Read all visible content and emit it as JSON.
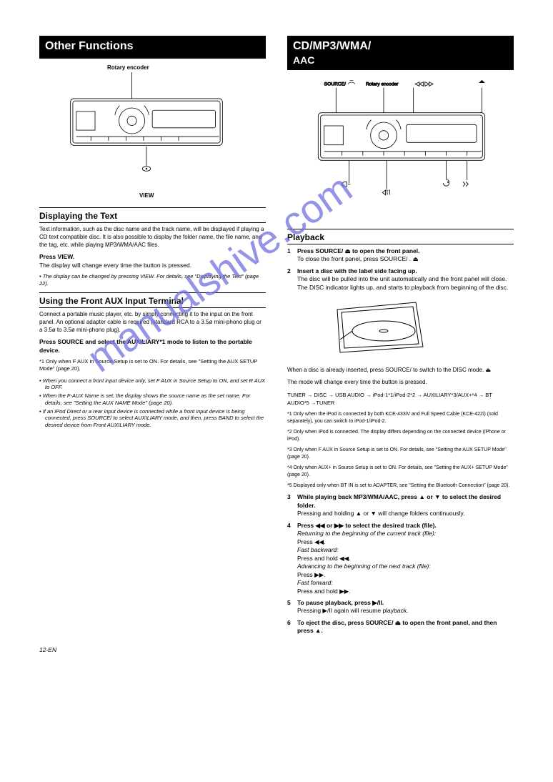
{
  "watermark": "manualshive.com",
  "pgnum": "12-EN",
  "left": {
    "header": {
      "title": "Other Functions"
    },
    "diagram": {
      "labels": {
        "top": "Rotary encoder",
        "bottom": "VIEW"
      },
      "svg": "<svg viewBox='0 0 300 220' width='300' height='180'><line x1='125' y1='5' x2='125' y2='50' stroke='#000' stroke-width='1'/><text x='130' y='10' font-size='8'></text><g fill='none' stroke='#000' stroke-width='1'><rect x='20' y='50' width='260' height='80' rx='6'/><rect x='24' y='54' width='252' height='72' rx='4'/><rect x='30' y='72' width='32' height='32'/><circle cx='125' cy='88' r='22'/><circle cx='125' cy='88' r='8'/><rect x='160' y='70' width='108' height='30' rx='3'/><line x1='30' y1='115' x2='274' y2='115'/><line x1='55' y1='115' x2='55' y2='122'/><line x1='85' y1='115' x2='85' y2='122'/><line x1='115' y1='115' x2='115' y2='122'/><line x1='145' y1='115' x2='145' y2='122'/><line x1='175' y1='115' x2='175' y2='122'/><line x1='205' y1='115' x2='205' y2='122'/><path d='M96 78 A30 30 0 0 1 104 62'/><path d='M154 78 A30 30 0 0 0 146 62'/></g><line x1='150' y1='132' x2='150' y2='165' stroke='#000' stroke-width='1'/><path d='M143 170 a7 4 0 1 0 14 0 a7 4 0 1 0 -14 0' fill='none' stroke='#000' stroke-width='1'/><circle cx='150' cy='170' r='1.5' fill='#000'/></svg>"
    },
    "sec1": {
      "title": "Displaying the Text",
      "body": "Text information, such as the disc name and the track name, will be displayed if playing a CD text compatible disc. It is also possible to display the folder name, the file name, and the tag, etc. while playing MP3/WMA/AAC files.",
      "step1": {
        "bold": "Press VIEW.",
        "rest": "The display will change every time the button is pressed."
      },
      "note_label": "The display can be changed by pressing VIEW. For details, see \"Displaying the Text\" (page 22)."
    },
    "sec2": {
      "title": "Using the Front AUX Input Terminal",
      "body": "Connect a portable music player, etc. by simply connecting it to the input on the front panel. An optional adapter cable is required (standard RCA to a 3.5ø mini-phono plug or a 3.5ø to 3.5ø mini-phono plug).",
      "step1": "Press SOURCE and select the AUXILIARY*1 mode to listen to the portable device.",
      "foot1": "*1 Only when F AUX in Source Setup is set to ON. For details, see \"Setting the AUX SETUP Mode\" (page 20).",
      "notes": [
        "When you connect a front input device only, set F AUX in Source Setup to ON, and set R AUX to OFF.",
        "When the F-AUX Name is set, the display shows the source name as the set name. For details, see \"Setting the AUX NAME Mode\" (page 20).",
        "If an iPod Direct or a rear input device is connected while a front input device is being connected, press SOURCE/ to select AUXILIARY mode, and then, press BAND to select the desired device from Front AUXILIARY mode."
      ]
    }
  },
  "right": {
    "header": {
      "title": "CD/MP3/WMA/",
      "sub": "AAC"
    },
    "diagram": {
      "svg": "<svg viewBox='0 0 320 240' width='320' height='200'><g stroke='#000' stroke-width='1' fill='none'><line x1='50' y1='20' x2='50' y2='62'/><text x='30' y='16' font-size='8'>SOURCE/</text><path d='M70 14 l3 -3 l6 0 l3 3 M73 8 l6 0' stroke-width='0.8'/><line x1='130' y1='20' x2='130' y2='62'/><text x='100' y='16' font-size='8'>Rotary encoder</text><line x1='180' y1='20' x2='180' y2='62'/><text x='183' y='16' font-size='9'>◀◀  ▶▶</text><line x1='295' y1='20' x2='295' y2='62'/><path d='M290 12 l10 0 l-5 -5 z' fill='#000' stroke='none'/><rect x='20' y='62' width='280' height='80' rx='6'/><rect x='24' y='66' width='272' height='72' rx='4'/><rect x='30' y='84' width='32' height='32'/><circle cx='130' cy='100' r='22'/><circle cx='130' cy='100' r='8'/><rect x='168' y='82' width='118' height='30' rx='3'/><line x1='30' y1='127' x2='294' y2='127'/><line x1='60' y1='127' x2='60' y2='134'/><line x1='95' y1='127' x2='95' y2='134'/><line x1='130' y1='127' x2='130' y2='134'/><line x1='165' y1='127' x2='165' y2='134'/><line x1='200' y1='127' x2='200' y2='134'/><line x1='235' y1='127' x2='235' y2='134'/><line x1='270' y1='127' x2='270' y2='134'/><path d='M101 90 A30 30 0 0 1 109 74'/><path d='M159 90 A30 30 0 0 0 151 74'/><line x1='72' y1='142' x2='72' y2='180'/><path d='M66 186 a6 4 0 0 1 0 -8 l2 0 l0 8 z M70 182 l4 0'/><line x1='135' y1='142' x2='135' y2='190'/><path d='M128 196 l5 -4 l0 8 z M134 192 l2 0 l0 8 M138 192 l2 0 l0 8'/><line x1='235' y1='142' x2='235' y2='175'/><path d='M230 180 a5 5 0 0 0 10 0 l-3 -3 M237 174 l3 3 l-3 3'/><line x1='270' y1='142' x2='270' y2='175'/><path d='M263 178 l4 4 l-4 4 M268 178 l4 4 l-4 4'/></g></svg>"
    },
    "sec1": {
      "title": "Playback",
      "step1": {
        "bold": "Press SOURCE/",
        "rest": " to open the front panel.",
        "after": "To close the front panel, press SOURCE/ ."
      },
      "step2": {
        "bold": "Insert a disc with the label side facing up.",
        "after1": "The disc will be pulled into the unit automatically and the front panel will close.",
        "after2": "The DISC indicator lights up, and starts to playback from beginning of the disc."
      },
      "inset_svg": "<svg viewBox='0 0 140 90' width='140' height='90'><g stroke='#000' stroke-width='1' fill='none'><path d='M10 20 L120 10 L130 72 L14 80 Z'/><path d='M16 24 L116 16 L124 68 L20 74 Z'/><ellipse cx='75' cy='50' rx='44' ry='14'/><ellipse cx='75' cy='50' rx='6' ry='2'/><path d='M31 50 L14 62'/></g></svg>",
      "after_inset": "When a disc is already inserted, press SOURCE/ to switch to the DISC mode.",
      "mode_line": "The mode will change every time the button is pressed.",
      "mode_seq": "TUNER → DISC → USB AUDIO → iPod-1*1/iPod-2*2 → AUXILIARY*3/AUX+*4 → BT AUDIO*5 →TUNER",
      "foot1": "*1 Only when the iPod is connected by both KCE-433iV and Full Speed Cable (KCE-422i) (sold separately), you can switch to iPod-1/iPod-2.",
      "foot2": "*2 Only when iPod is connected. The display differs depending on the connected device (iPhone or iPod).",
      "foot3": "*3 Only when F AUX in Source Setup is set to ON. For details, see \"Setting the AUX SETUP Mode\" (page 20).",
      "foot4": "*4 Only when AUX+ in Source Setup is set to ON. For details, see \"Setting the AUX+ SETUP Mode\" (page 20).",
      "foot5": "*5 Displayed only when BT IN is set to ADAPTER, see \"Setting the Bluetooth Connection\" (page 20).",
      "step3": {
        "bold": "While playing back MP3/WMA/AAC, press ▲ or ▼ to select the desired folder.",
        "rest": "Pressing and holding ▲ or ▼ will change folders continuously."
      },
      "step4": {
        "bold": "Press ◀◀ or ▶▶ to select the desired track (file).",
        "rest1": "Returning to the beginning of the current track (file):",
        "rest1b": "Press ◀◀.",
        "rest2": "Fast backward:",
        "rest2b": "Press and hold ◀◀.",
        "rest3": "Advancing to the beginning of the next track (file):",
        "rest3b": "Press ▶▶.",
        "rest4": "Fast forward:",
        "rest4b": "Press and hold ▶▶."
      },
      "step5": {
        "bold": "To pause playback, press ▶/II.",
        "rest": "Pressing ▶/II again will resume playback."
      },
      "step6": {
        "bold": "To eject the disc, press SOURCE/",
        "rest": " to open the front panel, and then press "
      }
    }
  }
}
